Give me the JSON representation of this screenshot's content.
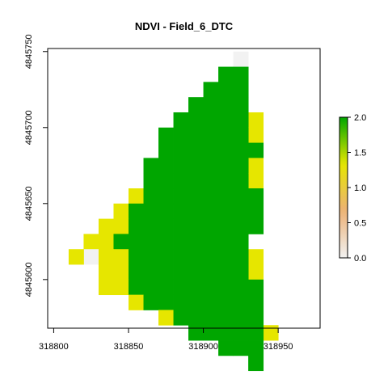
{
  "chart_data": {
    "type": "heatmap",
    "title": "NDVI - Field_6_DTC",
    "xlabel": "",
    "ylabel": "",
    "x_ticks": [
      318800,
      318850,
      318900,
      318950
    ],
    "y_ticks": [
      4845600,
      4845650,
      4845700,
      4845750
    ],
    "x_tick_labels": [
      "318800",
      "318850",
      "318900",
      "318950"
    ],
    "y_tick_labels": [
      "4845600",
      "4845650",
      "4845700",
      "4845750"
    ],
    "xlim": [
      318796,
      318978
    ],
    "ylim": [
      4845568,
      4845752
    ],
    "cell_size": 10,
    "legend": {
      "placement": "right",
      "min": 0,
      "max": 2,
      "ticks": [
        "0.0",
        "0.5",
        "1.0",
        "1.5",
        "2.0"
      ],
      "colors": [
        "#f2f2f2",
        "#ecb176",
        "#e6e600",
        "#00a600"
      ]
    },
    "value_classes": {
      "low": 0.1,
      "mid": 1.0,
      "high": 1.9
    },
    "rows": [
      {
        "y": 4845745,
        "low": [
          [
            318925,
            318925
          ]
        ],
        "mid": [],
        "high": []
      },
      {
        "y": 4845735,
        "low": [],
        "mid": [],
        "high": [
          [
            318915,
            318925
          ]
        ]
      },
      {
        "y": 4845725,
        "low": [],
        "mid": [],
        "high": [
          [
            318905,
            318925
          ]
        ]
      },
      {
        "y": 4845715,
        "low": [],
        "mid": [],
        "high": [
          [
            318895,
            318925
          ]
        ]
      },
      {
        "y": 4845705,
        "low": [],
        "mid": [
          [
            318935,
            318935
          ]
        ],
        "high": [
          [
            318885,
            318925
          ]
        ]
      },
      {
        "y": 4845695,
        "low": [],
        "mid": [
          [
            318935,
            318935
          ]
        ],
        "high": [
          [
            318875,
            318925
          ]
        ]
      },
      {
        "y": 4845685,
        "low": [],
        "mid": [],
        "high": [
          [
            318875,
            318935
          ]
        ]
      },
      {
        "y": 4845675,
        "low": [],
        "mid": [
          [
            318935,
            318935
          ]
        ],
        "high": [
          [
            318865,
            318925
          ]
        ]
      },
      {
        "y": 4845665,
        "low": [],
        "mid": [
          [
            318935,
            318935
          ]
        ],
        "high": [
          [
            318865,
            318925
          ]
        ]
      },
      {
        "y": 4845655,
        "low": [],
        "mid": [
          [
            318855,
            318855
          ]
        ],
        "high": [
          [
            318865,
            318935
          ]
        ]
      },
      {
        "y": 4845645,
        "low": [],
        "mid": [
          [
            318845,
            318845
          ]
        ],
        "high": [
          [
            318855,
            318935
          ]
        ]
      },
      {
        "y": 4845635,
        "low": [],
        "mid": [
          [
            318835,
            318845
          ]
        ],
        "high": [
          [
            318855,
            318935
          ]
        ]
      },
      {
        "y": 4845625,
        "low": [],
        "mid": [
          [
            318825,
            318835
          ]
        ],
        "high": [
          [
            318845,
            318925
          ]
        ]
      },
      {
        "y": 4845615,
        "low": [
          [
            318825,
            318825
          ]
        ],
        "mid": [
          [
            318815,
            318815
          ],
          [
            318835,
            318845
          ],
          [
            318935,
            318935
          ]
        ],
        "high": [
          [
            318855,
            318925
          ]
        ]
      },
      {
        "y": 4845605,
        "low": [],
        "mid": [
          [
            318835,
            318845
          ],
          [
            318935,
            318935
          ]
        ],
        "high": [
          [
            318855,
            318925
          ]
        ]
      },
      {
        "y": 4845595,
        "low": [],
        "mid": [
          [
            318835,
            318845
          ]
        ],
        "high": [
          [
            318855,
            318935
          ]
        ]
      },
      {
        "y": 4845585,
        "low": [],
        "mid": [
          [
            318855,
            318855
          ]
        ],
        "high": [
          [
            318865,
            318935
          ]
        ]
      },
      {
        "y": 4845575,
        "low": [],
        "mid": [
          [
            318875,
            318875
          ]
        ],
        "high": [
          [
            318885,
            318935
          ]
        ]
      },
      {
        "y": 4845565,
        "low": [],
        "mid": [
          [
            318945,
            318945
          ]
        ],
        "high": [
          [
            318895,
            318935
          ]
        ]
      },
      {
        "y": 4845555,
        "low": [],
        "mid": [],
        "high": [
          [
            318915,
            318935
          ]
        ]
      },
      {
        "y": 4845545,
        "low": [],
        "mid": [],
        "high": [
          [
            318935,
            318935
          ]
        ]
      }
    ]
  }
}
